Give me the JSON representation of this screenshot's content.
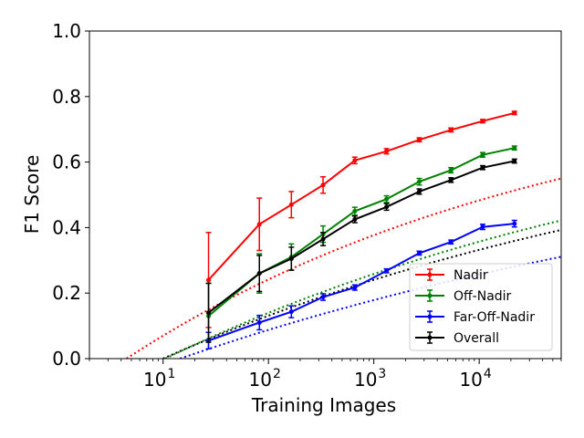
{
  "chart_data": {
    "type": "line",
    "xlabel": "Training Images",
    "ylabel": "F1 Score",
    "xscale": "log",
    "xlim": [
      2,
      60000
    ],
    "ylim": [
      0.0,
      1.0
    ],
    "x_major_ticks": [
      {
        "value": 10,
        "base": "10",
        "exp": "1"
      },
      {
        "value": 100,
        "base": "10",
        "exp": "2"
      },
      {
        "value": 1000,
        "base": "10",
        "exp": "3"
      },
      {
        "value": 10000,
        "base": "10",
        "exp": "4"
      }
    ],
    "y_ticks": [
      {
        "value": 0.0,
        "label": "0.0"
      },
      {
        "value": 0.2,
        "label": "0.2"
      },
      {
        "value": 0.4,
        "label": "0.4"
      },
      {
        "value": 0.6,
        "label": "0.6"
      },
      {
        "value": 0.8,
        "label": "0.8"
      },
      {
        "value": 1.0,
        "label": "1.0"
      }
    ],
    "grid": false,
    "legend_position": "lower-right",
    "x": [
      27,
      82,
      165,
      330,
      660,
      1320,
      2700,
      5400,
      10800,
      21600
    ],
    "series": [
      {
        "name": "Nadir",
        "color": "#ff0000",
        "values": [
          0.24,
          0.41,
          0.47,
          0.53,
          0.605,
          0.633,
          0.668,
          0.698,
          0.725,
          0.75
        ],
        "errors": [
          0.145,
          0.08,
          0.04,
          0.025,
          0.01,
          0.008,
          0.006,
          0.006,
          0.005,
          0.005
        ],
        "fit_x0": 4.5,
        "fit_slope": 0.21,
        "fit_cap": 0.875
      },
      {
        "name": "Off-Nadir",
        "color": "#008000",
        "values": [
          0.13,
          0.26,
          0.31,
          0.38,
          0.45,
          0.487,
          0.54,
          0.575,
          0.622,
          0.643
        ],
        "errors": [
          0.1,
          0.06,
          0.04,
          0.025,
          0.012,
          0.01,
          0.01,
          0.008,
          0.007,
          0.006
        ],
        "fit_x0": 10.5,
        "fit_slope": 0.156,
        "fit_cap": 0.84
      },
      {
        "name": "Far-Off-Nadir",
        "color": "#0000ff",
        "values": [
          0.055,
          0.11,
          0.143,
          0.188,
          0.217,
          0.268,
          0.322,
          0.356,
          0.402,
          0.412
        ],
        "errors": [
          0.025,
          0.022,
          0.018,
          0.01,
          0.008,
          0.006,
          0.006,
          0.006,
          0.008,
          0.01
        ],
        "fit_x0": 14.5,
        "fit_slope": 0.111,
        "fit_cap": 0.75
      },
      {
        "name": "Overall",
        "color": "#000000",
        "values": [
          0.14,
          0.26,
          0.305,
          0.365,
          0.425,
          0.463,
          0.51,
          0.545,
          0.583,
          0.603
        ],
        "errors": [
          0.09,
          0.055,
          0.035,
          0.02,
          0.01,
          0.01,
          0.008,
          0.007,
          0.006,
          0.006
        ],
        "fit_x0": 10.0,
        "fit_slope": 0.143,
        "fit_cap": 0.8
      }
    ]
  }
}
